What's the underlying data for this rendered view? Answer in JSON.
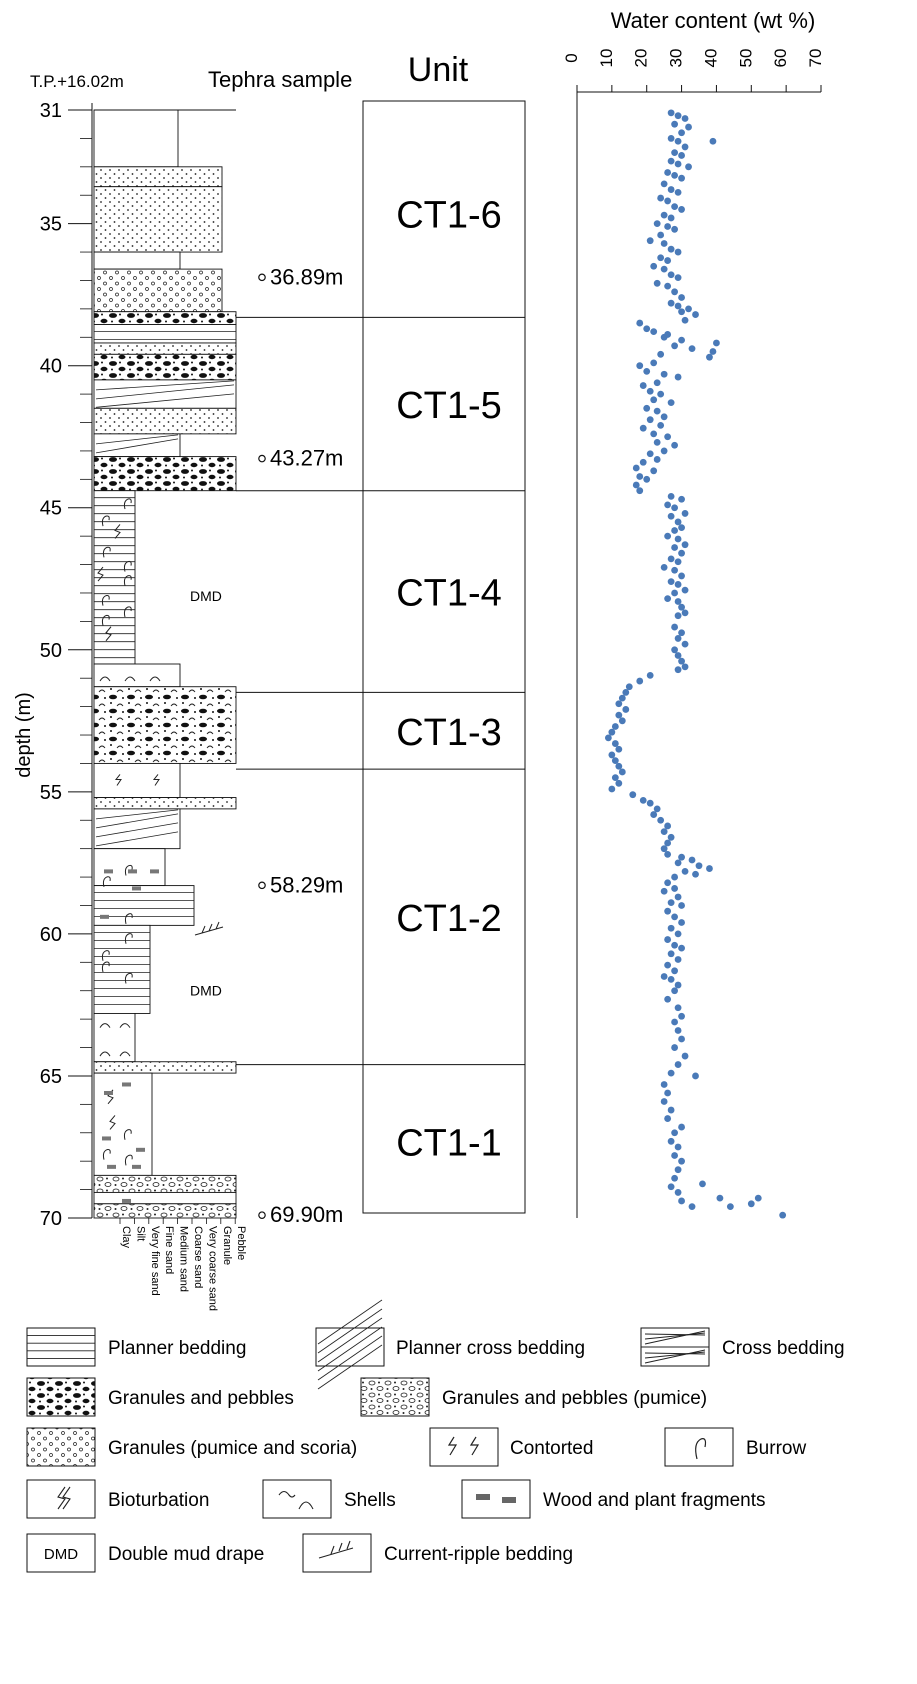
{
  "header": {
    "datum": "T.P.+16.02m",
    "tephra_label": "Tephra sample",
    "unit_label": "Unit",
    "depth_axis_label": "depth (m)",
    "water_title": "Water content (wt %)"
  },
  "depth_ticks": [
    "31",
    "35",
    "40",
    "45",
    "50",
    "55",
    "60",
    "65",
    "70"
  ],
  "grain_sizes": [
    "Clay",
    "Silt",
    "Very fine sand",
    "Fine sand",
    "Medium sand",
    "Coarse sand",
    "Very coarse sand",
    "Granule",
    "Pebble"
  ],
  "tephra_samples": [
    {
      "label": "36.89m",
      "depth": 36.89
    },
    {
      "label": "43.27m",
      "depth": 43.27
    },
    {
      "label": "58.29m",
      "depth": 58.29
    },
    {
      "label": "69.90m",
      "depth": 69.9
    }
  ],
  "dmd_labels": [
    {
      "text": "DMD",
      "depth": 48.1
    },
    {
      "text": "DMD",
      "depth": 62.0
    }
  ],
  "units": [
    {
      "name": "CT1-6",
      "top": 31.0,
      "bottom": 38.3
    },
    {
      "name": "CT1-5",
      "top": 38.3,
      "bottom": 44.4
    },
    {
      "name": "CT1-4",
      "top": 44.4,
      "bottom": 51.5
    },
    {
      "name": "CT1-3",
      "top": 51.5,
      "bottom": 54.2
    },
    {
      "name": "CT1-2",
      "top": 54.2,
      "bottom": 64.6
    },
    {
      "name": "CT1-1",
      "top": 64.6,
      "bottom": 70.0
    }
  ],
  "chart_data": {
    "type": "scatter",
    "title": "Water content (wt %)",
    "xlabel": "Water content (wt %)",
    "ylabel": "depth (m)",
    "xlim": [
      0,
      70
    ],
    "ylim": [
      31,
      70
    ],
    "x_ticks": [
      "0",
      "10",
      "20",
      "30",
      "40",
      "50",
      "60",
      "70"
    ],
    "y_inverted": true,
    "color": "#4a7ab8",
    "series": [
      {
        "points": [
          [
            27,
            31.1
          ],
          [
            29,
            31.2
          ],
          [
            31,
            31.3
          ],
          [
            28,
            31.5
          ],
          [
            32,
            31.6
          ],
          [
            30,
            31.8
          ],
          [
            27,
            32.0
          ],
          [
            29,
            32.1
          ],
          [
            39,
            32.1
          ],
          [
            31,
            32.3
          ],
          [
            28,
            32.5
          ],
          [
            30,
            32.6
          ],
          [
            27,
            32.8
          ],
          [
            29,
            32.9
          ],
          [
            32,
            33.0
          ],
          [
            26,
            33.2
          ],
          [
            28,
            33.3
          ],
          [
            30,
            33.4
          ],
          [
            25,
            33.6
          ],
          [
            27,
            33.8
          ],
          [
            29,
            33.9
          ],
          [
            24,
            34.1
          ],
          [
            26,
            34.2
          ],
          [
            28,
            34.4
          ],
          [
            30,
            34.5
          ],
          [
            25,
            34.7
          ],
          [
            27,
            34.8
          ],
          [
            23,
            35.0
          ],
          [
            26,
            35.1
          ],
          [
            28,
            35.2
          ],
          [
            24,
            35.4
          ],
          [
            21,
            35.6
          ],
          [
            25,
            35.7
          ],
          [
            27,
            35.9
          ],
          [
            29,
            36.0
          ],
          [
            24,
            36.2
          ],
          [
            26,
            36.3
          ],
          [
            22,
            36.5
          ],
          [
            25,
            36.6
          ],
          [
            27,
            36.8
          ],
          [
            29,
            36.9
          ],
          [
            23,
            37.1
          ],
          [
            26,
            37.2
          ],
          [
            28,
            37.4
          ],
          [
            30,
            37.6
          ],
          [
            27,
            37.8
          ],
          [
            29,
            37.9
          ],
          [
            32,
            38.0
          ],
          [
            30,
            38.1
          ],
          [
            34,
            38.2
          ],
          [
            31,
            38.4
          ],
          [
            18,
            38.5
          ],
          [
            20,
            38.7
          ],
          [
            22,
            38.8
          ],
          [
            26,
            38.9
          ],
          [
            25,
            39.0
          ],
          [
            30,
            39.1
          ],
          [
            40,
            39.2
          ],
          [
            28,
            39.3
          ],
          [
            33,
            39.4
          ],
          [
            39,
            39.5
          ],
          [
            24,
            39.6
          ],
          [
            38,
            39.7
          ],
          [
            22,
            39.9
          ],
          [
            18,
            40.0
          ],
          [
            20,
            40.2
          ],
          [
            25,
            40.3
          ],
          [
            29,
            40.4
          ],
          [
            23,
            40.6
          ],
          [
            19,
            40.7
          ],
          [
            21,
            40.9
          ],
          [
            24,
            41.0
          ],
          [
            22,
            41.2
          ],
          [
            27,
            41.3
          ],
          [
            20,
            41.5
          ],
          [
            23,
            41.6
          ],
          [
            25,
            41.8
          ],
          [
            21,
            41.9
          ],
          [
            24,
            42.1
          ],
          [
            19,
            42.2
          ],
          [
            22,
            42.4
          ],
          [
            26,
            42.5
          ],
          [
            23,
            42.7
          ],
          [
            28,
            42.8
          ],
          [
            25,
            43.0
          ],
          [
            21,
            43.1
          ],
          [
            23,
            43.3
          ],
          [
            19,
            43.4
          ],
          [
            17,
            43.6
          ],
          [
            22,
            43.7
          ],
          [
            18,
            43.9
          ],
          [
            20,
            44.0
          ],
          [
            17,
            44.2
          ],
          [
            18,
            44.4
          ],
          [
            27,
            44.6
          ],
          [
            30,
            44.7
          ],
          [
            26,
            44.9
          ],
          [
            28,
            45.0
          ],
          [
            31,
            45.2
          ],
          [
            27,
            45.3
          ],
          [
            29,
            45.5
          ],
          [
            30,
            45.7
          ],
          [
            28,
            45.8
          ],
          [
            26,
            46.0
          ],
          [
            29,
            46.1
          ],
          [
            31,
            46.3
          ],
          [
            28,
            46.4
          ],
          [
            30,
            46.6
          ],
          [
            27,
            46.8
          ],
          [
            29,
            46.9
          ],
          [
            25,
            47.1
          ],
          [
            28,
            47.2
          ],
          [
            30,
            47.4
          ],
          [
            27,
            47.6
          ],
          [
            29,
            47.7
          ],
          [
            31,
            47.9
          ],
          [
            28,
            48.0
          ],
          [
            26,
            48.2
          ],
          [
            29,
            48.3
          ],
          [
            30,
            48.5
          ],
          [
            31,
            48.7
          ],
          [
            29,
            48.8
          ],
          [
            28,
            49.2
          ],
          [
            30,
            49.4
          ],
          [
            29,
            49.6
          ],
          [
            31,
            49.8
          ],
          [
            28,
            50.0
          ],
          [
            29,
            50.2
          ],
          [
            30,
            50.4
          ],
          [
            31,
            50.6
          ],
          [
            29,
            50.7
          ],
          [
            21,
            50.9
          ],
          [
            18,
            51.1
          ],
          [
            15,
            51.3
          ],
          [
            14,
            51.5
          ],
          [
            13,
            51.7
          ],
          [
            12,
            51.9
          ],
          [
            14,
            52.1
          ],
          [
            12,
            52.3
          ],
          [
            13,
            52.5
          ],
          [
            11,
            52.7
          ],
          [
            10,
            52.9
          ],
          [
            9,
            53.1
          ],
          [
            11,
            53.3
          ],
          [
            12,
            53.5
          ],
          [
            10,
            53.7
          ],
          [
            11,
            53.9
          ],
          [
            12,
            54.1
          ],
          [
            13,
            54.3
          ],
          [
            11,
            54.5
          ],
          [
            12,
            54.7
          ],
          [
            10,
            54.9
          ],
          [
            16,
            55.1
          ],
          [
            19,
            55.3
          ],
          [
            21,
            55.4
          ],
          [
            23,
            55.6
          ],
          [
            22,
            55.8
          ],
          [
            24,
            56.0
          ],
          [
            26,
            56.2
          ],
          [
            25,
            56.4
          ],
          [
            27,
            56.6
          ],
          [
            26,
            56.8
          ],
          [
            25,
            57.0
          ],
          [
            26,
            57.2
          ],
          [
            30,
            57.3
          ],
          [
            33,
            57.4
          ],
          [
            29,
            57.5
          ],
          [
            35,
            57.6
          ],
          [
            38,
            57.7
          ],
          [
            31,
            57.8
          ],
          [
            34,
            57.9
          ],
          [
            28,
            58.0
          ],
          [
            26,
            58.2
          ],
          [
            28,
            58.4
          ],
          [
            25,
            58.5
          ],
          [
            29,
            58.7
          ],
          [
            27,
            58.9
          ],
          [
            30,
            59.0
          ],
          [
            26,
            59.2
          ],
          [
            28,
            59.4
          ],
          [
            30,
            59.6
          ],
          [
            27,
            59.8
          ],
          [
            29,
            60.0
          ],
          [
            26,
            60.2
          ],
          [
            28,
            60.4
          ],
          [
            30,
            60.5
          ],
          [
            27,
            60.7
          ],
          [
            29,
            60.9
          ],
          [
            26,
            61.1
          ],
          [
            28,
            61.3
          ],
          [
            25,
            61.5
          ],
          [
            27,
            61.6
          ],
          [
            29,
            61.8
          ],
          [
            28,
            62.0
          ],
          [
            26,
            62.3
          ],
          [
            29,
            62.6
          ],
          [
            30,
            62.9
          ],
          [
            28,
            63.1
          ],
          [
            29,
            63.4
          ],
          [
            30,
            63.7
          ],
          [
            28,
            64.0
          ],
          [
            31,
            64.3
          ],
          [
            29,
            64.6
          ],
          [
            27,
            64.9
          ],
          [
            34,
            65.0
          ],
          [
            25,
            65.3
          ],
          [
            26,
            65.6
          ],
          [
            25,
            65.9
          ],
          [
            27,
            66.2
          ],
          [
            26,
            66.5
          ],
          [
            30,
            66.8
          ],
          [
            28,
            67.0
          ],
          [
            27,
            67.3
          ],
          [
            29,
            67.5
          ],
          [
            28,
            67.8
          ],
          [
            30,
            68.0
          ],
          [
            29,
            68.3
          ],
          [
            28,
            68.6
          ],
          [
            27,
            68.9
          ],
          [
            29,
            69.1
          ],
          [
            36,
            68.8
          ],
          [
            30,
            69.4
          ],
          [
            41,
            69.3
          ],
          [
            52,
            69.3
          ],
          [
            44,
            69.6
          ],
          [
            50,
            69.5
          ],
          [
            33,
            69.6
          ],
          [
            59,
            69.9
          ]
        ]
      }
    ]
  },
  "legend": [
    {
      "key": "planner",
      "label": "Planner bedding"
    },
    {
      "key": "plannercross",
      "label": "Planner cross bedding"
    },
    {
      "key": "cross",
      "label": "Cross bedding"
    },
    {
      "key": "granpeb",
      "label": "Granules and pebbles"
    },
    {
      "key": "granpebpumice",
      "label": "Granules and pebbles (pumice)"
    },
    {
      "key": "granpumice",
      "label": "Granules (pumice and scoria)"
    },
    {
      "key": "contorted",
      "label": "Contorted"
    },
    {
      "key": "burrow",
      "label": "Burrow"
    },
    {
      "key": "bioturbation",
      "label": "Bioturbation"
    },
    {
      "key": "shells",
      "label": "Shells"
    },
    {
      "key": "wood",
      "label": "Wood and plant fragments"
    },
    {
      "key": "dmd",
      "label": "Double mud drape",
      "box_text": "DMD"
    },
    {
      "key": "ripple",
      "label": "Current-ripple bedding"
    }
  ]
}
